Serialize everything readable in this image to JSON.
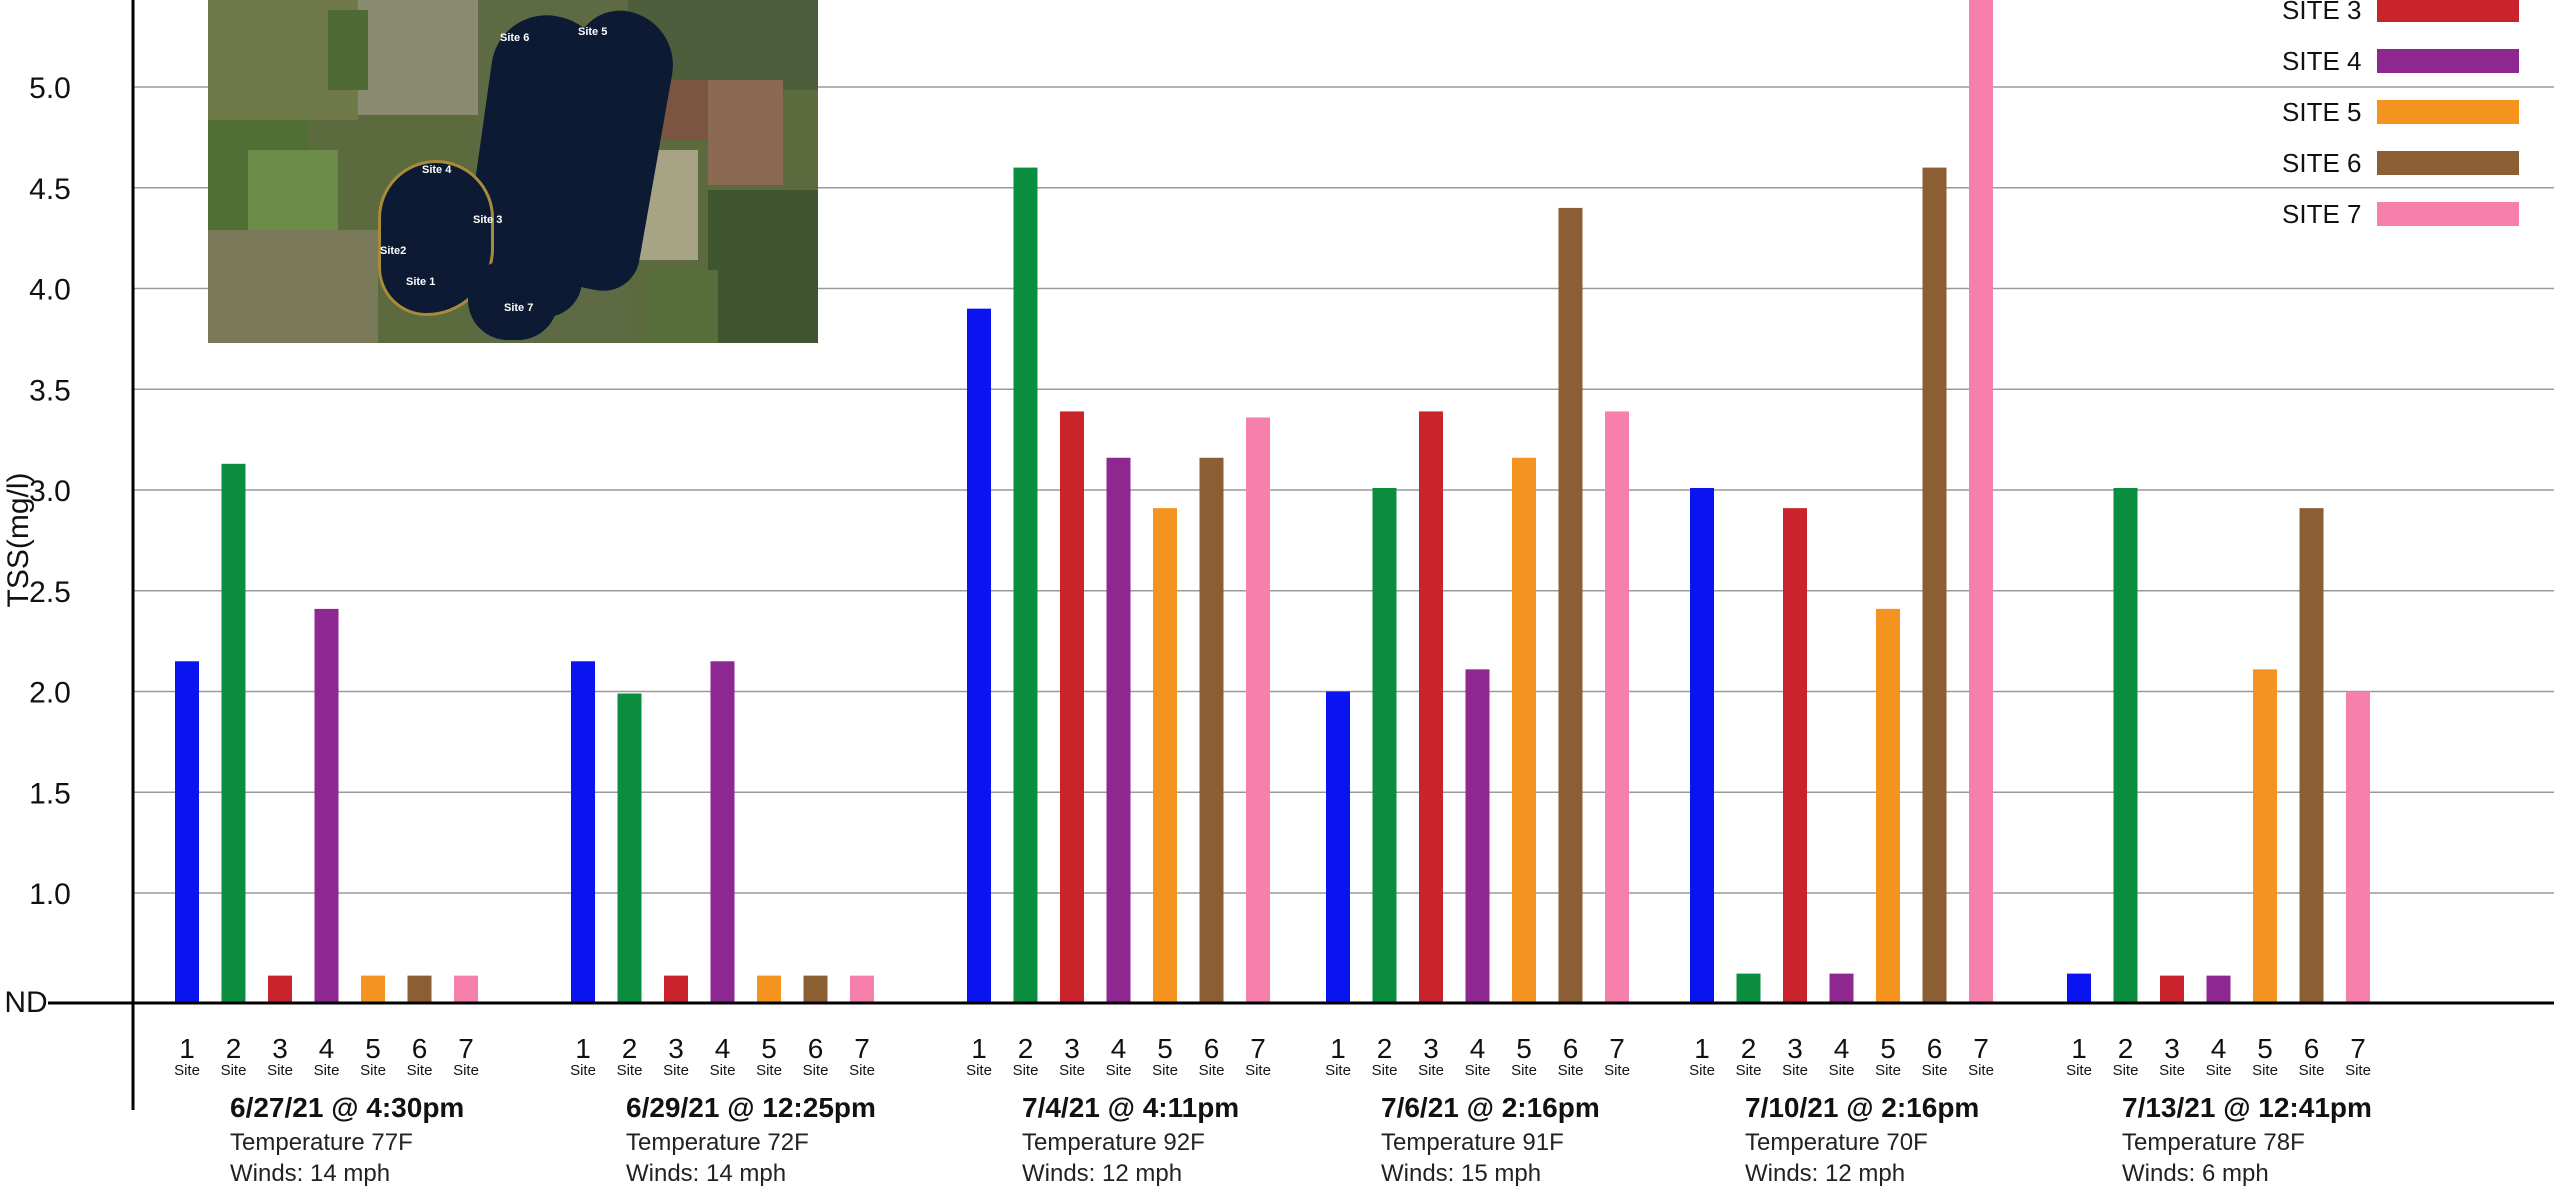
{
  "chart_data": {
    "type": "bar",
    "ylabel": "TSS(mg/l)",
    "yticks": [
      "ND",
      "1.0",
      "1.5",
      "2.0",
      "2.5",
      "3.0",
      "3.5",
      "4.0",
      "4.5",
      "5.0"
    ],
    "ylim": [
      0.5,
      5.5
    ],
    "nd_value": 0.5,
    "site_word": "Site",
    "sites": [
      "1",
      "2",
      "3",
      "4",
      "5",
      "6",
      "7"
    ],
    "colors": [
      "#0a14f0",
      "#0b8d3f",
      "#c9242c",
      "#8e2790",
      "#f4931f",
      "#8b5e34",
      "#f77fab"
    ],
    "groups": [
      {
        "title": "6/27/21 @ 4:30pm",
        "temperature": "Temperature 77F",
        "winds": "Winds: 14 mph",
        "values": [
          2.15,
          3.13,
          0.59,
          2.41,
          0.59,
          0.59,
          0.59
        ]
      },
      {
        "title": "6/29/21 @ 12:25pm",
        "temperature": "Temperature 72F",
        "winds": "Winds: 14 mph",
        "values": [
          2.15,
          1.99,
          0.59,
          2.15,
          0.59,
          0.59,
          0.59
        ]
      },
      {
        "title": "7/4/21 @ 4:11pm",
        "temperature": "Temperature 92F",
        "winds": "Winds: 12 mph",
        "values": [
          3.9,
          4.6,
          3.39,
          3.16,
          2.91,
          3.16,
          3.36
        ]
      },
      {
        "title": "7/6/21 @ 2:16pm",
        "temperature": "Temperature 91F",
        "winds": "Winds: 15 mph",
        "values": [
          2.0,
          3.01,
          3.39,
          2.11,
          3.16,
          4.4,
          3.39
        ]
      },
      {
        "title": "7/10/21 @ 2:16pm",
        "temperature": "Temperature 70F",
        "winds": "Winds: 12 mph",
        "values": [
          3.01,
          0.6,
          2.91,
          0.6,
          2.41,
          4.6,
          5.49
        ]
      },
      {
        "title": "7/13/21 @ 12:41pm",
        "temperature": "Temperature 78F",
        "winds": "Winds: 6 mph",
        "values": [
          0.6,
          3.01,
          0.59,
          0.59,
          2.11,
          2.91,
          2.0
        ]
      }
    ],
    "legend": [
      {
        "label": "SITE 3",
        "color": "#c9242c"
      },
      {
        "label": "SITE 4",
        "color": "#8e2790"
      },
      {
        "label": "SITE 5",
        "color": "#f4931f"
      },
      {
        "label": "SITE 6",
        "color": "#8b5e34"
      },
      {
        "label": "SITE 7",
        "color": "#f77fab"
      }
    ],
    "legend_placement": "top-right",
    "grid": true
  },
  "map": {
    "labels": [
      "Site 6",
      "Site 5",
      "Site 4",
      "Site 3",
      "Site2",
      "Site 1",
      "Site 7"
    ]
  }
}
